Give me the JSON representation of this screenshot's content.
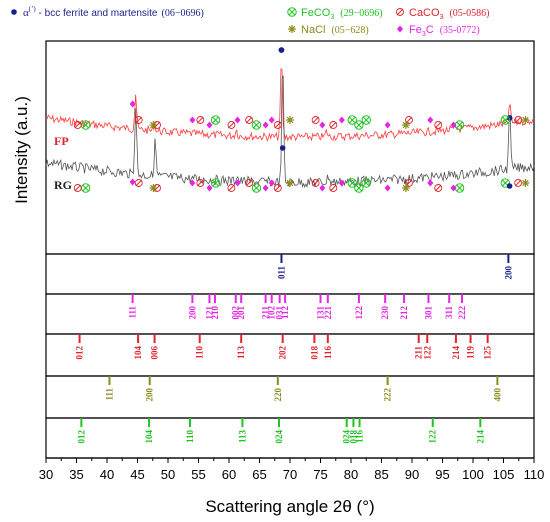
{
  "chart_data": {
    "type": "line",
    "title": "",
    "xlabel": "Scattering angle 2θ (°)",
    "ylabel": "Intensity (a.u.)",
    "xlim": [
      30,
      110
    ],
    "x_ticks": [
      "30",
      "35",
      "40",
      "45",
      "50",
      "55",
      "60",
      "65",
      "70",
      "75",
      "80",
      "85",
      "90",
      "95",
      "100",
      "105",
      "110"
    ],
    "legend": {
      "placement": "top",
      "entries": [
        {
          "key": "alpha",
          "symbol": "dot",
          "color": "#1b1f8a",
          "prefix": "α",
          "sup": "(’)",
          "text": " - bcc ferrite and martensite",
          "code": "(06−0696)"
        },
        {
          "key": "feco3",
          "symbol": "otimes",
          "color": "#1fc41f",
          "text": "FeCO",
          "sub": "3",
          "code": "(29−0696)"
        },
        {
          "key": "caco3",
          "symbol": "oslash",
          "color": "#e0242b",
          "text": "CaCO",
          "sub": "3",
          "code": "(05-0586)"
        },
        {
          "key": "nacl",
          "symbol": "star",
          "color": "#8b8b1e",
          "text": "NaCl",
          "code": "(05−628)"
        },
        {
          "key": "fe3c",
          "symbol": "diamond",
          "color": "#e326e3",
          "text": "Fe",
          "sub": "3",
          "text2": "C",
          "code": "(35-0772)"
        }
      ]
    },
    "series": [
      {
        "name": "FP",
        "color": "#ff3b3b",
        "peaks": [
          {
            "x": 44.7,
            "h": 0.5
          },
          {
            "x": 68.6,
            "h": 1.0
          },
          {
            "x": 106.0,
            "h": 0.32
          },
          {
            "x": 47.8,
            "h": 0.1
          },
          {
            "x": 61.2,
            "h": 0.08
          },
          {
            "x": 76.0,
            "h": 0.07
          }
        ]
      },
      {
        "name": "RG",
        "color": "#555555",
        "peaks": [
          {
            "x": 44.7,
            "h": 0.6
          },
          {
            "x": 47.9,
            "h": 0.3
          },
          {
            "x": 68.8,
            "h": 1.0
          },
          {
            "x": 106.0,
            "h": 0.55
          },
          {
            "x": 61.3,
            "h": 0.05
          },
          {
            "x": 76.3,
            "h": 0.05
          }
        ]
      }
    ],
    "trace_markers": [
      {
        "x": 68.6,
        "sym": "alpha"
      },
      {
        "x": 106.0,
        "sym": "alpha"
      },
      {
        "x": 36.5,
        "sym": "feco3"
      },
      {
        "x": 57.8,
        "sym": "feco3"
      },
      {
        "x": 64.5,
        "sym": "feco3"
      },
      {
        "x": 80.2,
        "sym": "feco3"
      },
      {
        "x": 81.3,
        "sym": "feco3"
      },
      {
        "x": 82.5,
        "sym": "feco3"
      },
      {
        "x": 97.8,
        "sym": "feco3"
      },
      {
        "x": 105.3,
        "sym": "feco3"
      },
      {
        "x": 35.2,
        "sym": "caco3"
      },
      {
        "x": 45.2,
        "sym": "caco3"
      },
      {
        "x": 48.2,
        "sym": "caco3"
      },
      {
        "x": 55.3,
        "sym": "caco3"
      },
      {
        "x": 60.4,
        "sym": "caco3"
      },
      {
        "x": 63.3,
        "sym": "caco3"
      },
      {
        "x": 68.0,
        "sym": "caco3"
      },
      {
        "x": 74.2,
        "sym": "caco3"
      },
      {
        "x": 77.1,
        "sym": "caco3"
      },
      {
        "x": 89.5,
        "sym": "caco3"
      },
      {
        "x": 94.3,
        "sym": "caco3"
      },
      {
        "x": 107.4,
        "sym": "caco3"
      },
      {
        "x": 47.6,
        "sym": "nacl"
      },
      {
        "x": 70.0,
        "sym": "nacl"
      },
      {
        "x": 89.0,
        "sym": "nacl"
      },
      {
        "x": 108.6,
        "sym": "nacl"
      },
      {
        "x": 44.2,
        "sym": "fe3c"
      },
      {
        "x": 54.0,
        "sym": "fe3c"
      },
      {
        "x": 56.8,
        "sym": "fe3c"
      },
      {
        "x": 61.4,
        "sym": "fe3c"
      },
      {
        "x": 66.0,
        "sym": "fe3c"
      },
      {
        "x": 67.0,
        "sym": "fe3c"
      },
      {
        "x": 75.3,
        "sym": "fe3c"
      },
      {
        "x": 78.5,
        "sym": "fe3c"
      },
      {
        "x": 86.0,
        "sym": "fe3c"
      },
      {
        "x": 93.0,
        "sym": "fe3c"
      },
      {
        "x": 96.8,
        "sym": "fe3c"
      }
    ],
    "reference_panels": [
      {
        "name": "alpha",
        "color": "#1b1f8a",
        "lines": [
          {
            "x": 68.6,
            "hkl": "011"
          },
          {
            "x": 105.8,
            "hkl": "200"
          }
        ]
      },
      {
        "name": "fe3c",
        "color": "#e326e3",
        "lines": [
          {
            "x": 44.2,
            "hkl": "111"
          },
          {
            "x": 54.0,
            "hkl": "200"
          },
          {
            "x": 56.8,
            "hkl": "121"
          },
          {
            "x": 57.7,
            "hkl": "210"
          },
          {
            "x": 61.1,
            "hkl": "002"
          },
          {
            "x": 62.0,
            "hkl": "201"
          },
          {
            "x": 66.0,
            "hkl": "211"
          },
          {
            "x": 67.0,
            "hkl": "102"
          },
          {
            "x": 68.3,
            "hkl": "031"
          },
          {
            "x": 69.2,
            "hkl": "112"
          },
          {
            "x": 75.0,
            "hkl": "131"
          },
          {
            "x": 76.2,
            "hkl": "221"
          },
          {
            "x": 81.3,
            "hkl": "122"
          },
          {
            "x": 85.6,
            "hkl": "230"
          },
          {
            "x": 88.7,
            "hkl": "212"
          },
          {
            "x": 92.7,
            "hkl": "301"
          },
          {
            "x": 96.1,
            "hkl": "311"
          },
          {
            "x": 98.2,
            "hkl": "222"
          }
        ]
      },
      {
        "name": "caco3",
        "color": "#e0242b",
        "lines": [
          {
            "x": 35.5,
            "hkl": "012"
          },
          {
            "x": 45.1,
            "hkl": "104"
          },
          {
            "x": 47.8,
            "hkl": "006"
          },
          {
            "x": 55.2,
            "hkl": "110"
          },
          {
            "x": 62.0,
            "hkl": "113"
          },
          {
            "x": 68.8,
            "hkl": "202"
          },
          {
            "x": 74.0,
            "hkl": "018"
          },
          {
            "x": 76.2,
            "hkl": "116"
          },
          {
            "x": 91.1,
            "hkl": "211"
          },
          {
            "x": 92.5,
            "hkl": "122"
          },
          {
            "x": 97.2,
            "hkl": "214"
          },
          {
            "x": 99.6,
            "hkl": "119"
          },
          {
            "x": 102.4,
            "hkl": "125"
          }
        ]
      },
      {
        "name": "nacl",
        "color": "#8b8b1e",
        "lines": [
          {
            "x": 40.4,
            "hkl": "111"
          },
          {
            "x": 47.0,
            "hkl": "200"
          },
          {
            "x": 68.0,
            "hkl": "220"
          },
          {
            "x": 86.0,
            "hkl": "222"
          },
          {
            "x": 104.0,
            "hkl": "400"
          }
        ]
      },
      {
        "name": "feco3",
        "color": "#1fc41f",
        "lines": [
          {
            "x": 35.8,
            "hkl": "012"
          },
          {
            "x": 46.9,
            "hkl": "104"
          },
          {
            "x": 53.6,
            "hkl": "110"
          },
          {
            "x": 62.2,
            "hkl": "113"
          },
          {
            "x": 68.2,
            "hkl": "024"
          },
          {
            "x": 79.3,
            "hkl": "024"
          },
          {
            "x": 80.4,
            "hkl": "018"
          },
          {
            "x": 81.4,
            "hkl": "116"
          },
          {
            "x": 93.4,
            "hkl": "122"
          },
          {
            "x": 101.2,
            "hkl": "214"
          }
        ]
      }
    ]
  }
}
